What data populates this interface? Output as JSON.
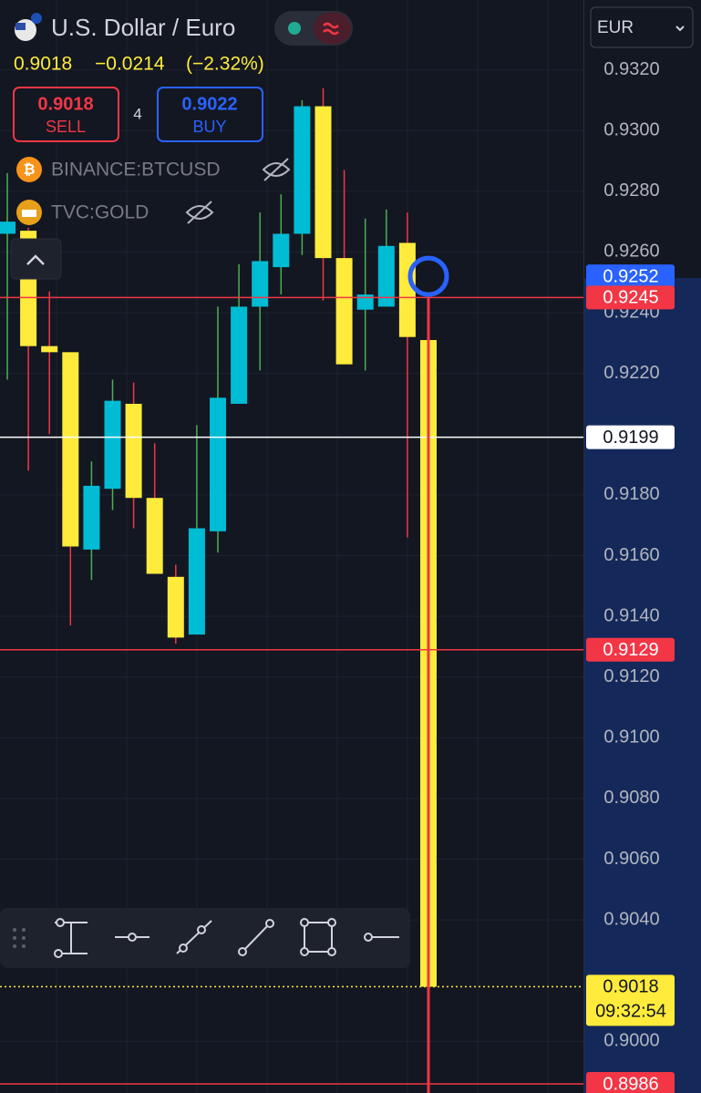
{
  "header": {
    "title": "U.S. Dollar / Euro",
    "price": "0.9018",
    "change": "−0.0214",
    "change_pct": "(−2.32%)"
  },
  "trade": {
    "sell_price": "0.9018",
    "sell_label": "SELL",
    "quantity": "4",
    "buy_price": "0.9022",
    "buy_label": "BUY"
  },
  "indicators": [
    {
      "label": "BINANCE:BTCUSD"
    },
    {
      "label": "TVC:GOLD"
    }
  ],
  "currency": "EUR",
  "chart_data": {
    "type": "candlestick",
    "categories": [
      null,
      null,
      null,
      null,
      null,
      null,
      null,
      null,
      null,
      null,
      null,
      null,
      null,
      null,
      null,
      null,
      null,
      null,
      null,
      null,
      null
    ],
    "open": [
      0.9266,
      0.9267,
      0.9229,
      0.9227,
      0.9162,
      0.9182,
      0.921,
      0.9179,
      0.9153,
      0.9134,
      0.9168,
      0.921,
      0.9242,
      0.9255,
      0.9266,
      0.9308,
      0.9258,
      0.9241,
      0.9242,
      0.9263,
      0.9231
    ],
    "high": [
      0.9286,
      0.9268,
      0.9247,
      0.9227,
      0.9191,
      0.9218,
      0.9217,
      0.9197,
      0.9157,
      0.9203,
      0.9242,
      0.9256,
      0.9273,
      0.9279,
      0.931,
      0.9314,
      0.9287,
      0.9271,
      0.9274,
      0.9273,
      0.9231
    ],
    "low": [
      0.9218,
      0.9188,
      0.92,
      0.9137,
      0.9152,
      0.9175,
      0.9169,
      0.9154,
      0.9131,
      0.9134,
      0.9161,
      0.921,
      0.9221,
      0.9246,
      0.9259,
      0.9244,
      0.9223,
      0.9221,
      0.9242,
      0.9166,
      0.9018
    ],
    "close": [
      0.927,
      0.9229,
      0.9227,
      0.9163,
      0.9183,
      0.9211,
      0.9179,
      0.9154,
      0.9133,
      0.9169,
      0.9212,
      0.9242,
      0.9257,
      0.9266,
      0.9308,
      0.9258,
      0.9223,
      0.9246,
      0.9262,
      0.9232,
      0.9018
    ],
    "up_color": "#00bcd4",
    "down_color": "#ffeb3b",
    "up_wick_color": "#4caf50",
    "down_wick_color": "#f23645",
    "ylim": [
      0.8983,
      0.9343
    ],
    "yticks": [
      {
        "value": 0.932,
        "label": "0.9320"
      },
      {
        "value": 0.93,
        "label": "0.9300"
      },
      {
        "value": 0.928,
        "label": "0.9280"
      },
      {
        "value": 0.926,
        "label": "0.9260"
      },
      {
        "value": 0.924,
        "label": "0.9240"
      },
      {
        "value": 0.922,
        "label": "0.9220"
      },
      {
        "value": 0.918,
        "label": "0.9180"
      },
      {
        "value": 0.916,
        "label": "0.9160"
      },
      {
        "value": 0.914,
        "label": "0.9140"
      },
      {
        "value": 0.912,
        "label": "0.9120"
      },
      {
        "value": 0.91,
        "label": "0.9100"
      },
      {
        "value": 0.908,
        "label": "0.9080"
      },
      {
        "value": 0.906,
        "label": "0.9060"
      },
      {
        "value": 0.904,
        "label": "0.9040"
      },
      {
        "value": 0.9,
        "label": "0.9000"
      }
    ],
    "grid": true,
    "price_lines": [
      {
        "value": 0.9252,
        "color": "#2962ff",
        "style": "none"
      },
      {
        "value": 0.9245,
        "color": "#f23645",
        "style": "solid"
      },
      {
        "value": 0.9199,
        "color": "#ffffff",
        "style": "solid"
      },
      {
        "value": 0.9129,
        "color": "#f23645",
        "style": "solid"
      },
      {
        "value": 0.9018,
        "color": "#ffeb3b",
        "style": "dotted",
        "countdown": "09:32:54"
      },
      {
        "value": 0.8986,
        "color": "#f23645",
        "style": "solid"
      }
    ]
  }
}
